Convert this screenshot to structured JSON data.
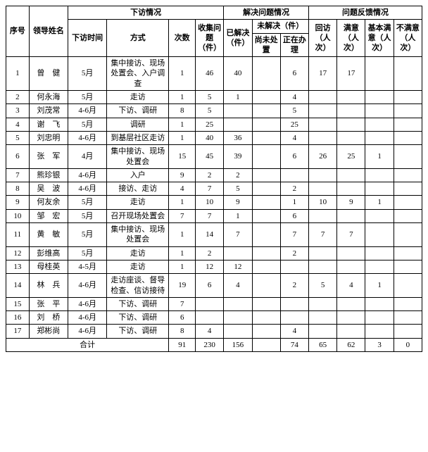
{
  "header": {
    "seq": "序号",
    "name": "领导姓名",
    "visit_group": "下访情况",
    "visit_time": "下访时间",
    "visit_method": "方式",
    "visit_count": "次数",
    "visit_collect": "收集问题（件）",
    "resolve_group": "解决问题情况",
    "resolved": "已解决（件）",
    "unresolved_group": "未解决（件）",
    "unresolved_pending": "尚未处置",
    "unresolved_processing": "正在办理",
    "feedback_group": "问题反馈情况",
    "fb_return": "回访（人次）",
    "fb_satisfied": "满意（人次）",
    "fb_basic": "基本满意（人次）",
    "fb_unsatisfied": "不满意（人次）"
  },
  "rows": [
    {
      "idx": "1",
      "name": "曾　健",
      "time": "5月",
      "method": "集中接访、现场处置会、入户调查",
      "count": "1",
      "collect": "46",
      "resolved": "40",
      "pending": "",
      "processing": "6",
      "ret": "17",
      "sat": "17",
      "basic": "",
      "unsat": ""
    },
    {
      "idx": "2",
      "name": "何永海",
      "time": "5月",
      "method": "走访",
      "count": "1",
      "collect": "5",
      "resolved": "1",
      "pending": "",
      "processing": "4",
      "ret": "",
      "sat": "",
      "basic": "",
      "unsat": ""
    },
    {
      "idx": "3",
      "name": "刘茂常",
      "time": "4-6月",
      "method": "下访、调研",
      "count": "8",
      "collect": "5",
      "resolved": "",
      "pending": "",
      "processing": "5",
      "ret": "",
      "sat": "",
      "basic": "",
      "unsat": ""
    },
    {
      "idx": "4",
      "name": "谢　飞",
      "time": "5月",
      "method": "调研",
      "count": "1",
      "collect": "25",
      "resolved": "",
      "pending": "",
      "processing": "25",
      "ret": "",
      "sat": "",
      "basic": "",
      "unsat": ""
    },
    {
      "idx": "5",
      "name": "刘忠明",
      "time": "4-6月",
      "method": "到基层社区走访",
      "count": "1",
      "collect": "40",
      "resolved": "36",
      "pending": "",
      "processing": "4",
      "ret": "",
      "sat": "",
      "basic": "",
      "unsat": ""
    },
    {
      "idx": "6",
      "name": "张　军",
      "time": "4月",
      "method": "集中接访、现场处置会",
      "count": "15",
      "collect": "45",
      "resolved": "39",
      "pending": "",
      "processing": "6",
      "ret": "26",
      "sat": "25",
      "basic": "1",
      "unsat": ""
    },
    {
      "idx": "7",
      "name": "熊珍银",
      "time": "4-6月",
      "method": "入户",
      "count": "9",
      "collect": "2",
      "resolved": "2",
      "pending": "",
      "processing": "",
      "ret": "",
      "sat": "",
      "basic": "",
      "unsat": ""
    },
    {
      "idx": "8",
      "name": "吴　波",
      "time": "4-6月",
      "method": "接访、走访",
      "count": "4",
      "collect": "7",
      "resolved": "5",
      "pending": "",
      "processing": "2",
      "ret": "",
      "sat": "",
      "basic": "",
      "unsat": ""
    },
    {
      "idx": "9",
      "name": "何友余",
      "time": "5月",
      "method": "走访",
      "count": "1",
      "collect": "10",
      "resolved": "9",
      "pending": "",
      "processing": "1",
      "ret": "10",
      "sat": "9",
      "basic": "1",
      "unsat": ""
    },
    {
      "idx": "10",
      "name": "邹　宏",
      "time": "5月",
      "method": "召开现场处置会",
      "count": "7",
      "collect": "7",
      "resolved": "1",
      "pending": "",
      "processing": "6",
      "ret": "",
      "sat": "",
      "basic": "",
      "unsat": ""
    },
    {
      "idx": "11",
      "name": "黄　敏",
      "time": "5月",
      "method": "集中接访、现场处置会",
      "count": "1",
      "collect": "14",
      "resolved": "7",
      "pending": "",
      "processing": "7",
      "ret": "7",
      "sat": "7",
      "basic": "",
      "unsat": ""
    },
    {
      "idx": "12",
      "name": "彭维高",
      "time": "5月",
      "method": "走访",
      "count": "1",
      "collect": "2",
      "resolved": "",
      "pending": "",
      "processing": "2",
      "ret": "",
      "sat": "",
      "basic": "",
      "unsat": ""
    },
    {
      "idx": "13",
      "name": "母桂英",
      "time": "4-5月",
      "method": "走访",
      "count": "1",
      "collect": "12",
      "resolved": "12",
      "pending": "",
      "processing": "",
      "ret": "",
      "sat": "",
      "basic": "",
      "unsat": ""
    },
    {
      "idx": "14",
      "name": "林　兵",
      "time": "4-6月",
      "method": "走访座谈、督导检查、信访接待",
      "count": "19",
      "collect": "6",
      "resolved": "4",
      "pending": "",
      "processing": "2",
      "ret": "5",
      "sat": "4",
      "basic": "1",
      "unsat": ""
    },
    {
      "idx": "15",
      "name": "张　平",
      "time": "4-6月",
      "method": "下访、调研",
      "count": "7",
      "collect": "",
      "resolved": "",
      "pending": "",
      "processing": "",
      "ret": "",
      "sat": "",
      "basic": "",
      "unsat": ""
    },
    {
      "idx": "16",
      "name": "刘　桥",
      "time": "4-6月",
      "method": "下访、调研",
      "count": "6",
      "collect": "",
      "resolved": "",
      "pending": "",
      "processing": "",
      "ret": "",
      "sat": "",
      "basic": "",
      "unsat": ""
    },
    {
      "idx": "17",
      "name": "郑彬尚",
      "time": "4-6月",
      "method": "下访、调研",
      "count": "8",
      "collect": "4",
      "resolved": "",
      "pending": "",
      "processing": "4",
      "ret": "",
      "sat": "",
      "basic": "",
      "unsat": ""
    }
  ],
  "total": {
    "label": "合计",
    "count": "91",
    "collect": "230",
    "resolved": "156",
    "pending": "",
    "processing": "74",
    "ret": "65",
    "sat": "62",
    "basic": "3",
    "unsat": "0"
  }
}
